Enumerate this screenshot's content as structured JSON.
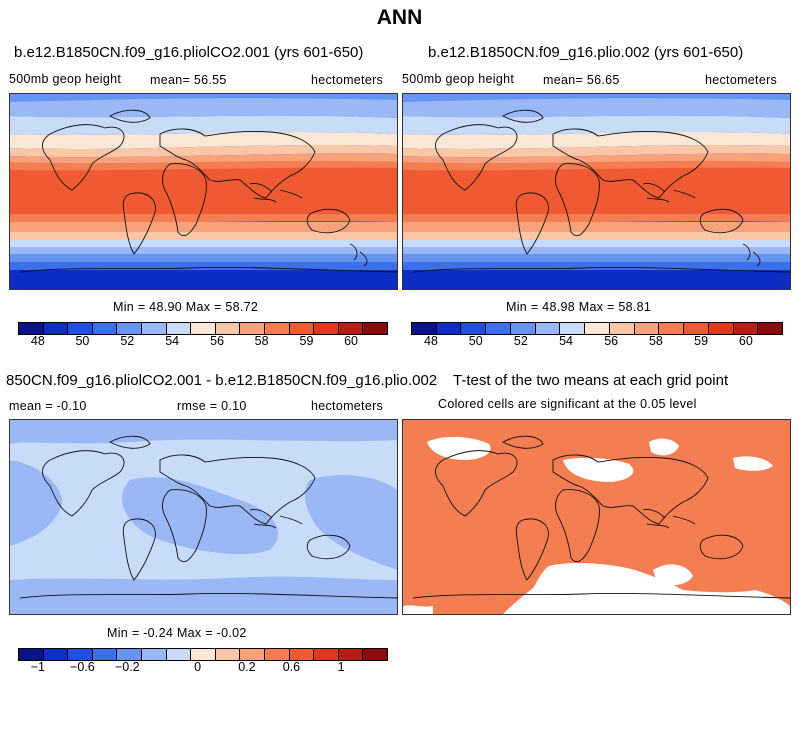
{
  "main_title": "ANN",
  "panel1": {
    "title": "b.e12.B1850CN.f09_g16.pliolCO2.001 (yrs 601-650)",
    "variable": "500mb geop height",
    "mean": "mean=   56.55",
    "units": "hectometers",
    "stats": "Min =  48.90 Max =  58.72"
  },
  "panel2": {
    "title": "b.e12.B1850CN.f09_g16.plio.002 (yrs 601-650)",
    "variable": "500mb geop height",
    "mean": "mean=   56.65",
    "units": "hectometers",
    "stats": "Min =  48.98 Max =  58.81"
  },
  "panel3": {
    "title": "850CN.f09_g16.pliolCO2.001 - b.e12.B1850CN.f09_g16.plio.002",
    "mean": "mean =   -0.10",
    "rmse": "rmse =    0.10",
    "units": "hectometers",
    "stats": "Min =  -0.24 Max =  -0.02"
  },
  "panel4": {
    "title": "T-test of the two means at each grid point",
    "subtitle": "Colored cells are significant at the 0.05 level"
  },
  "colorbar_abs": {
    "labels": [
      "48",
      "50",
      "52",
      "54",
      "56",
      "58",
      "59",
      "60"
    ],
    "colors": [
      "#08138a",
      "#0d2ec4",
      "#1f4fe0",
      "#3c6fea",
      "#6694f0",
      "#9ab8f6",
      "#c8dcfa",
      "#fbe7d6",
      "#f9c7a6",
      "#f7a27a",
      "#f47d52",
      "#f05a33",
      "#dd3a1d",
      "#b81d12",
      "#8a0c08"
    ]
  },
  "colorbar_diff": {
    "labels": [
      "-1",
      "-0.6",
      "-0.2",
      "0",
      "0.2",
      "0.6",
      "1"
    ],
    "colors": [
      "#08138a",
      "#0d2ec4",
      "#1f4fe0",
      "#3c6fea",
      "#6694f0",
      "#9ab8f6",
      "#c8dcfa",
      "#fbe7d6",
      "#f9c7a6",
      "#f7a27a",
      "#f47d52",
      "#f05a33",
      "#dd3a1d",
      "#b81d12",
      "#8a0c08"
    ]
  }
}
